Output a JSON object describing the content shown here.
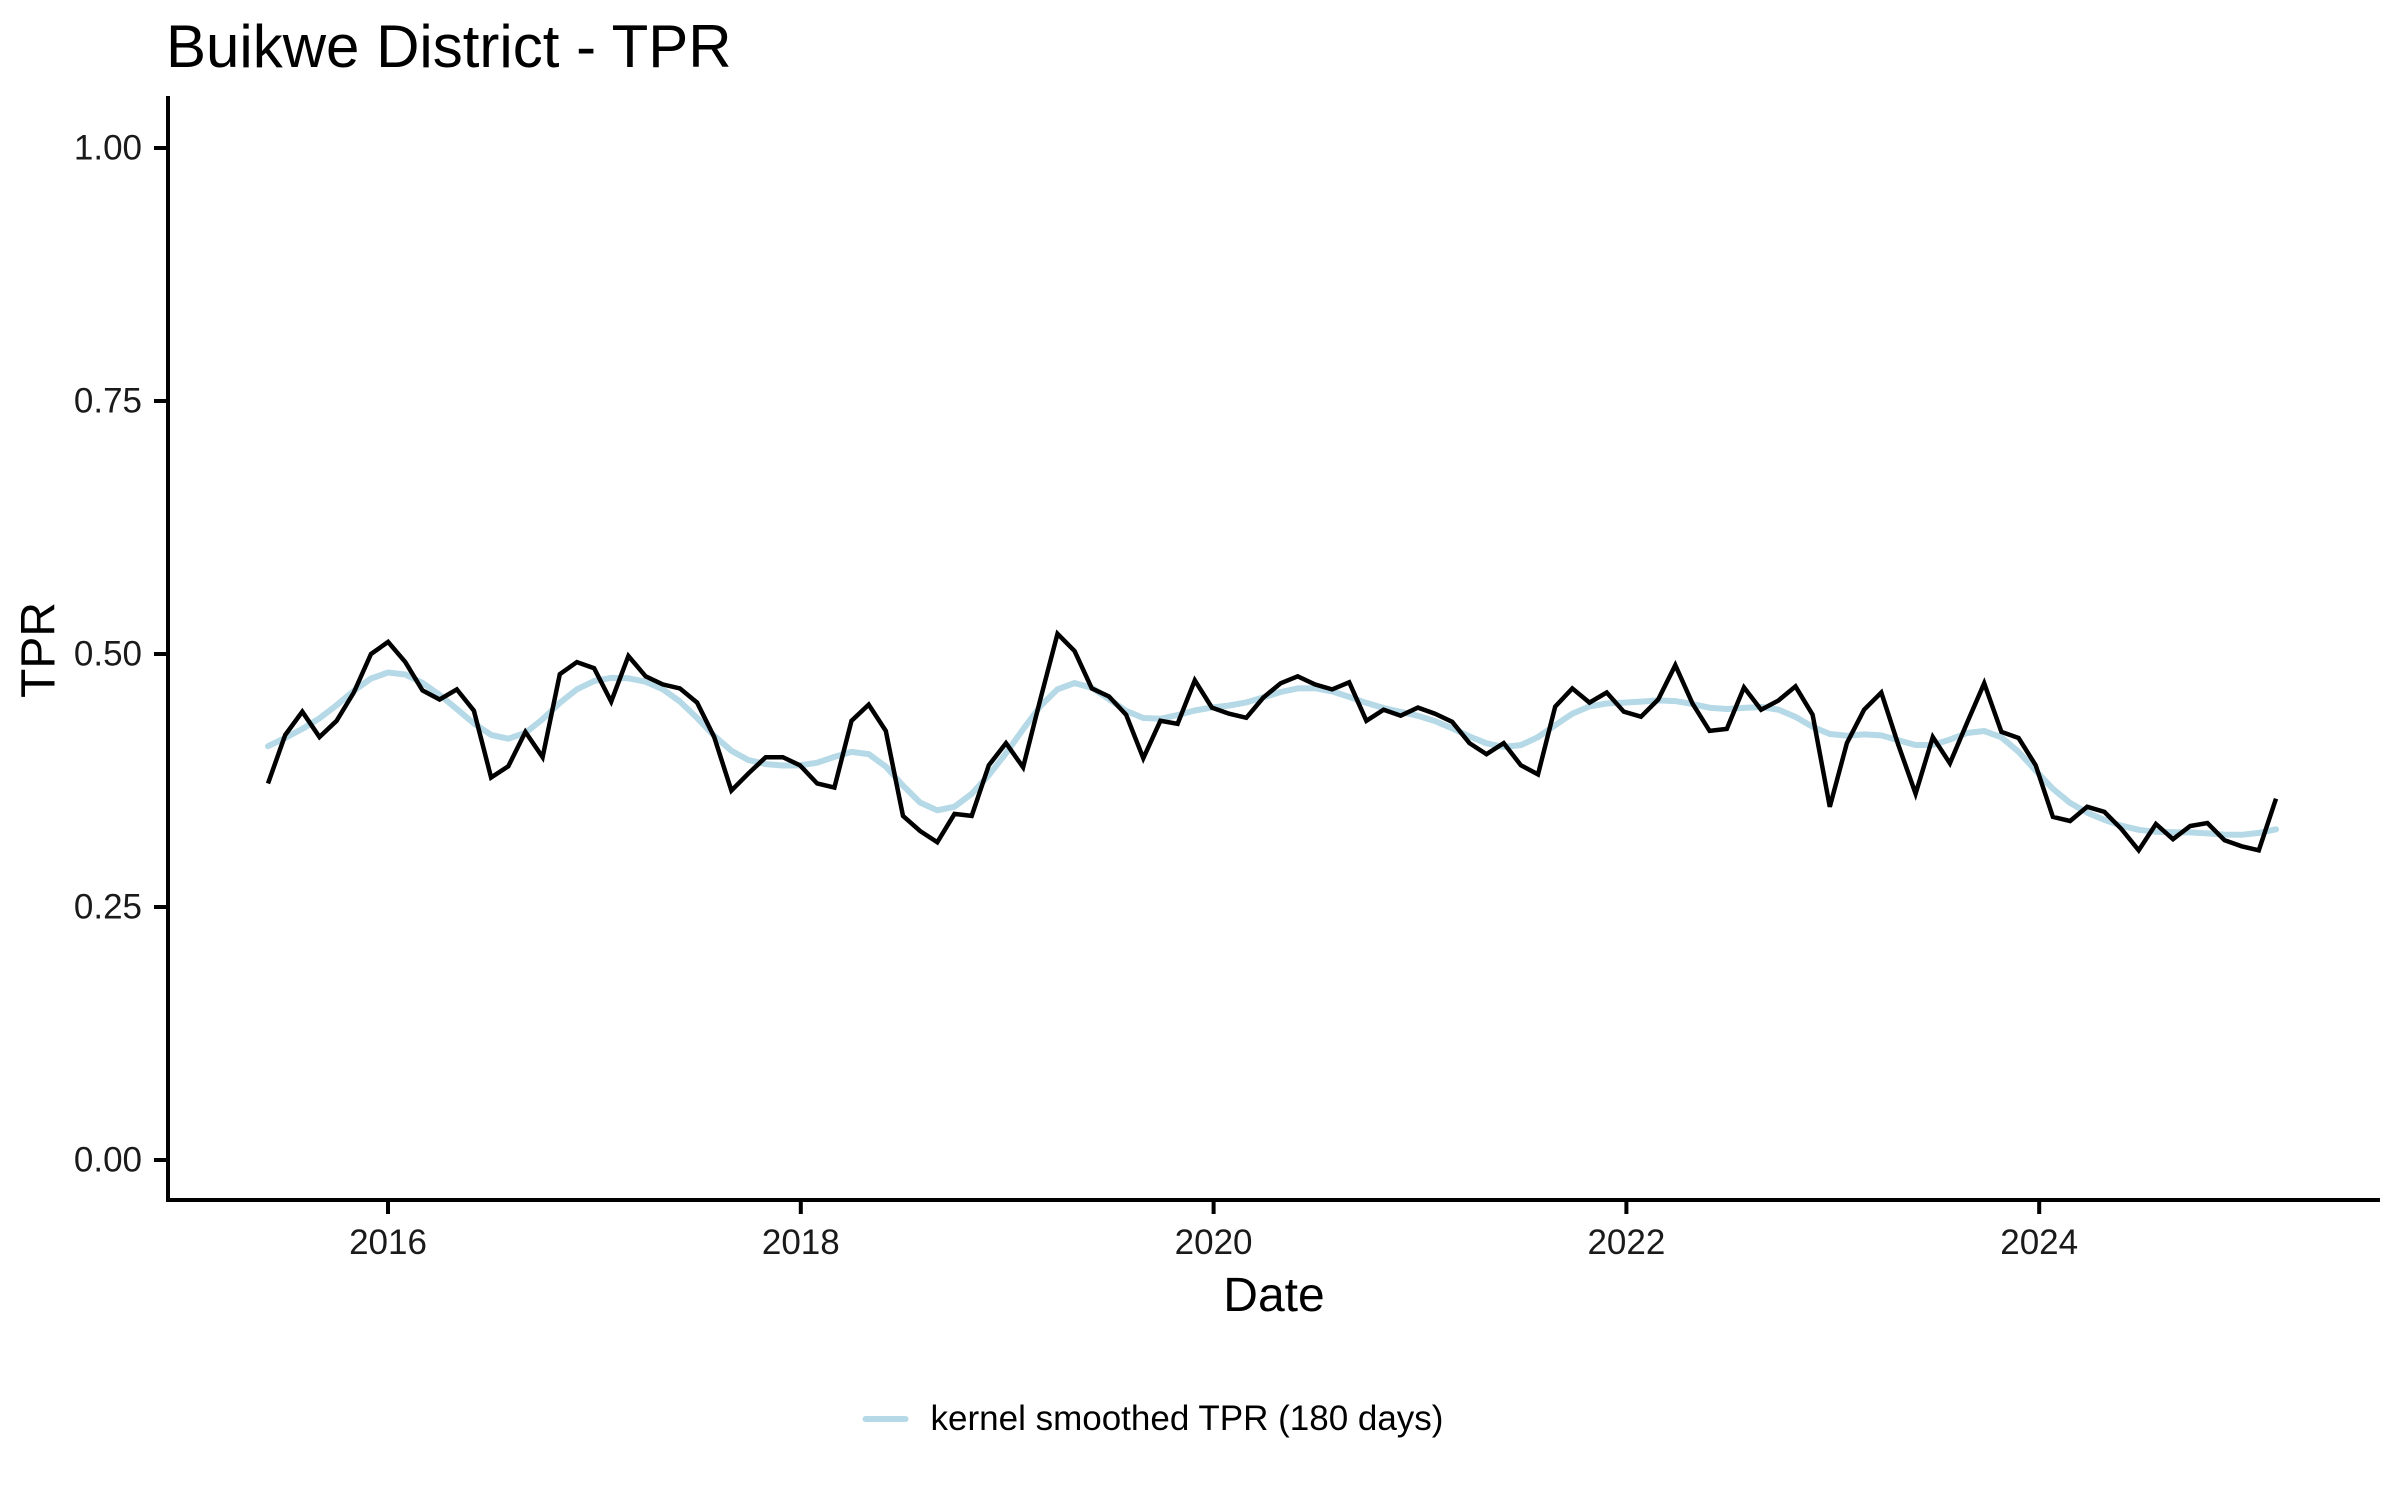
{
  "page": {
    "background": "#ffffff",
    "title": "Buikwe District - TPR"
  },
  "chart_data": {
    "type": "line",
    "title": "Buikwe District - TPR",
    "xlabel": "Date",
    "ylabel": "TPR",
    "ylim": [
      0,
      1
    ],
    "grid": "off",
    "y_tick_labels": [
      "1.00",
      "0.75",
      "0.50",
      "0.25",
      "0.00"
    ],
    "y_tick_values": [
      1.0,
      0.75,
      0.5,
      0.25,
      0.0
    ],
    "x_tick_labels": [
      "2016",
      "2018",
      "2020",
      "2022",
      "2024"
    ],
    "x_tick_years": [
      2016,
      2018,
      2020,
      2022,
      2024
    ],
    "x_range_months": [
      "2015-06",
      "2025-03"
    ],
    "colors": {
      "raw_line": "#000000",
      "smoothed_line": "#b5d9e6",
      "axis": "#000000",
      "text": "#1a1a1a"
    },
    "series": [
      {
        "name": "TPR",
        "kind": "raw-monthly",
        "color": "#000000",
        "months": [
          "2015-06",
          "2015-07",
          "2015-08",
          "2015-09",
          "2015-10",
          "2015-11",
          "2015-12",
          "2016-01",
          "2016-02",
          "2016-03",
          "2016-04",
          "2016-05",
          "2016-06",
          "2016-07",
          "2016-08",
          "2016-09",
          "2016-10",
          "2016-11",
          "2016-12",
          "2017-01",
          "2017-02",
          "2017-03",
          "2017-04",
          "2017-05",
          "2017-06",
          "2017-07",
          "2017-08",
          "2017-09",
          "2017-10",
          "2017-11",
          "2017-12",
          "2018-01",
          "2018-02",
          "2018-03",
          "2018-04",
          "2018-05",
          "2018-06",
          "2018-07",
          "2018-08",
          "2018-09",
          "2018-10",
          "2018-11",
          "2018-12",
          "2019-01",
          "2019-02",
          "2019-03",
          "2019-04",
          "2019-05",
          "2019-06",
          "2019-07",
          "2019-08",
          "2019-09",
          "2019-10",
          "2019-11",
          "2019-12",
          "2020-01",
          "2020-02",
          "2020-03",
          "2020-04",
          "2020-05",
          "2020-06",
          "2020-07",
          "2020-08",
          "2020-09",
          "2020-10",
          "2020-11",
          "2020-12",
          "2021-01",
          "2021-02",
          "2021-03",
          "2021-04",
          "2021-05",
          "2021-06",
          "2021-07",
          "2021-08",
          "2021-09",
          "2021-10",
          "2021-11",
          "2021-12",
          "2022-01",
          "2022-02",
          "2022-03",
          "2022-04",
          "2022-05",
          "2022-06",
          "2022-07",
          "2022-08",
          "2022-09",
          "2022-10",
          "2022-11",
          "2022-12",
          "2023-01",
          "2023-02",
          "2023-03",
          "2023-04",
          "2023-05",
          "2023-06",
          "2023-07",
          "2023-08",
          "2023-09",
          "2023-10",
          "2023-11",
          "2023-12",
          "2024-01",
          "2024-02",
          "2024-03",
          "2024-04",
          "2024-05",
          "2024-06",
          "2024-07",
          "2024-08",
          "2024-09",
          "2024-10",
          "2024-11",
          "2024-12",
          "2025-01",
          "2025-02",
          "2025-03"
        ],
        "values": [
          0.372,
          0.42,
          0.443,
          0.418,
          0.434,
          0.462,
          0.5,
          0.512,
          0.492,
          0.464,
          0.455,
          0.465,
          0.444,
          0.378,
          0.389,
          0.423,
          0.398,
          0.48,
          0.492,
          0.486,
          0.453,
          0.498,
          0.478,
          0.47,
          0.466,
          0.452,
          0.418,
          0.365,
          0.382,
          0.398,
          0.398,
          0.39,
          0.372,
          0.368,
          0.434,
          0.45,
          0.424,
          0.34,
          0.325,
          0.314,
          0.342,
          0.34,
          0.39,
          0.412,
          0.388,
          0.455,
          0.52,
          0.503,
          0.466,
          0.458,
          0.44,
          0.397,
          0.434,
          0.431,
          0.474,
          0.447,
          0.441,
          0.437,
          0.457,
          0.471,
          0.478,
          0.47,
          0.465,
          0.472,
          0.434,
          0.445,
          0.439,
          0.447,
          0.441,
          0.433,
          0.412,
          0.401,
          0.412,
          0.39,
          0.381,
          0.448,
          0.466,
          0.452,
          0.462,
          0.443,
          0.438,
          0.455,
          0.489,
          0.451,
          0.424,
          0.426,
          0.467,
          0.445,
          0.454,
          0.468,
          0.44,
          0.349,
          0.412,
          0.445,
          0.462,
          0.41,
          0.362,
          0.418,
          0.392,
          0.432,
          0.471,
          0.423,
          0.417,
          0.39,
          0.339,
          0.335,
          0.349,
          0.344,
          0.327,
          0.306,
          0.332,
          0.317,
          0.33,
          0.333,
          0.316,
          0.31,
          0.306,
          0.357
        ]
      },
      {
        "name": "kernel smoothed TPR (180 days)",
        "kind": "kernel-smoothed",
        "color": "#b5d9e6",
        "derived_from": "TPR",
        "kernel_window_days": 180
      }
    ],
    "legend": {
      "position": "bottom-center",
      "entries": [
        {
          "label": "kernel smoothed TPR (180 days)",
          "color": "#b5d9e6"
        }
      ]
    }
  }
}
